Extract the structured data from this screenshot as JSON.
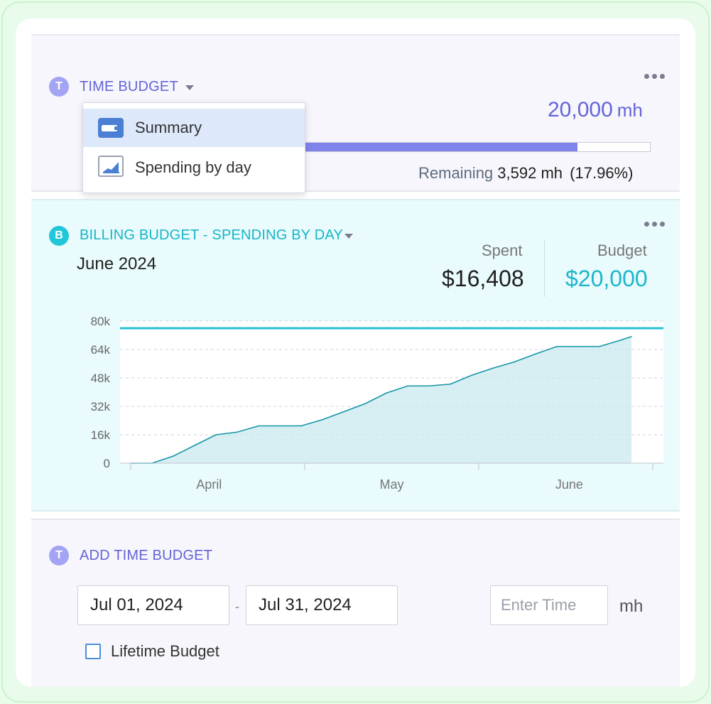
{
  "time_budget": {
    "badge": "T",
    "title": "TIME BUDGET",
    "amount": "20,000",
    "unit": "mh",
    "remaining_label": "Remaining",
    "remaining_value": "3,592",
    "remaining_unit": "mh",
    "remaining_pct": "(17.96%)",
    "progress_fraction": 0.8204,
    "menu_icon": "more-dots-icon"
  },
  "dropdown": {
    "items": [
      {
        "label": "Summary",
        "icon": "summary-card-icon",
        "active": true
      },
      {
        "label": "Spending by day",
        "icon": "area-chart-icon",
        "active": false
      }
    ]
  },
  "billing": {
    "badge": "B",
    "title": "BILLING BUDGET - SPENDING BY DAY",
    "month": "June 2024",
    "spent_label": "Spent",
    "spent_value": "$16,408",
    "budget_label": "Budget",
    "budget_value": "$20,000",
    "menu_icon": "more-dots-icon"
  },
  "chart_data": {
    "type": "area",
    "title": "",
    "xlabel": "",
    "ylabel": "",
    "ylim": [
      0,
      80000
    ],
    "y_ticks": [
      0,
      16000,
      32000,
      48000,
      64000,
      80000
    ],
    "y_tick_labels": [
      "0",
      "16k",
      "32k",
      "48k",
      "64k",
      "80k"
    ],
    "x_tick_labels": [
      "April",
      "May",
      "June"
    ],
    "budget_line": 76000,
    "grid": true,
    "colors": {
      "line": "#1596a6",
      "fill": "#c9e8ef",
      "budget_line": "#25c1d6"
    },
    "series": [
      {
        "x": [
          0,
          4,
          8,
          12,
          16,
          20,
          24,
          28,
          32,
          36,
          40,
          44,
          48,
          52,
          56,
          60,
          64,
          68,
          72,
          76,
          80,
          84,
          88,
          92,
          94
        ],
        "values": [
          0,
          0,
          4000,
          10000,
          16000,
          17500,
          21000,
          21000,
          21000,
          24500,
          29000,
          33500,
          39500,
          43500,
          43500,
          44500,
          49500,
          53500,
          57000,
          61500,
          65700,
          65700,
          65700,
          69300,
          71300
        ]
      }
    ]
  },
  "add_time_budget": {
    "badge": "T",
    "title": "ADD TIME BUDGET",
    "start_date": "Jul 01, 2024",
    "separator": "-",
    "end_date": "Jul 31, 2024",
    "time_placeholder": "Enter Time",
    "unit": "mh",
    "lifetime_label": "Lifetime Budget"
  }
}
